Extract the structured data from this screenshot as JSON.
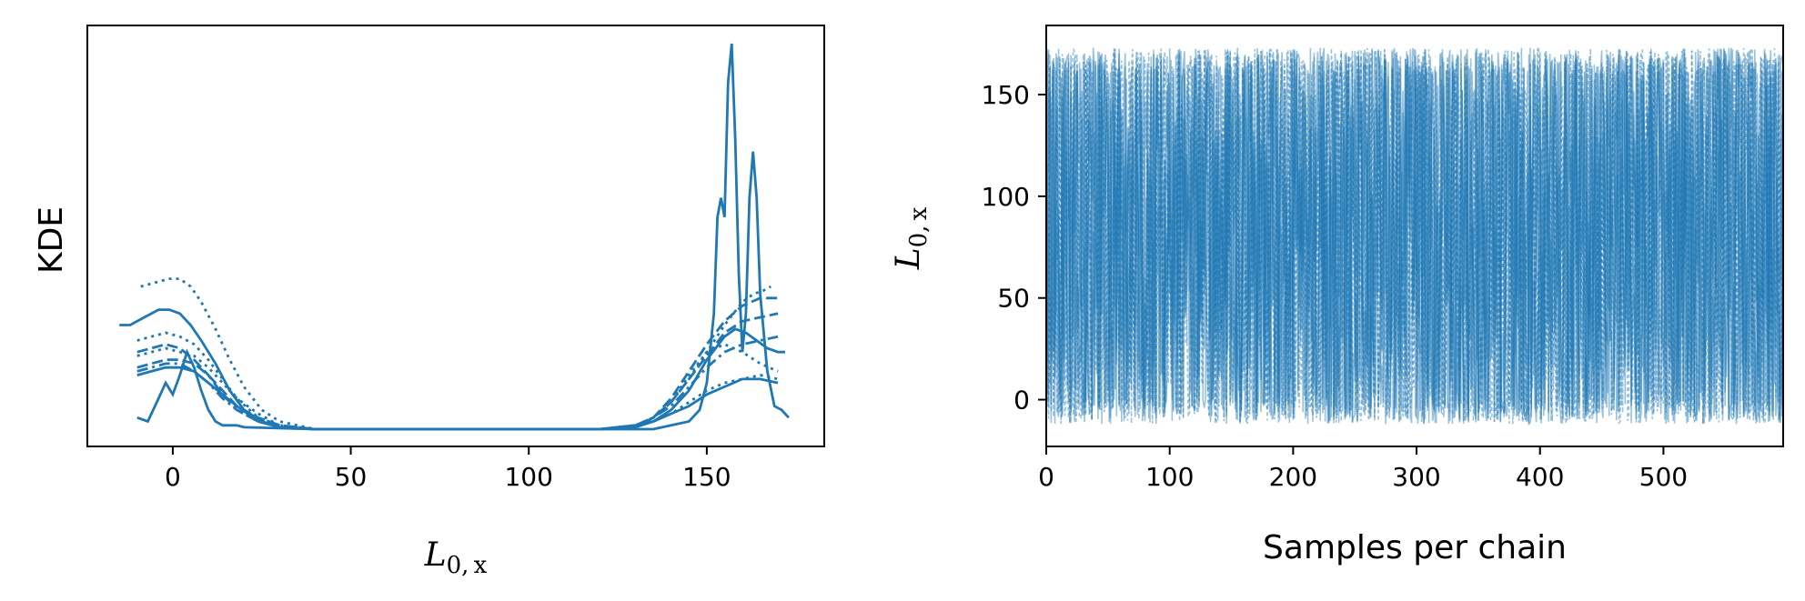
{
  "chart_data": [
    {
      "type": "line",
      "panel": "kde",
      "ylabel": "KDE",
      "xlabel": {
        "main": "L",
        "sub": "0, x"
      },
      "xlim": [
        -24,
        183
      ],
      "ylim": [
        0,
        1
      ],
      "xticks": [
        0,
        50,
        100,
        150
      ],
      "xtick_labels": [
        "0",
        "50",
        "100",
        "150"
      ],
      "yticks_shown": false,
      "color": "#1f77b4",
      "series": [
        {
          "style": "solid",
          "points": [
            [
              -10,
              0.03
            ],
            [
              -7,
              0.02
            ],
            [
              -4,
              0.08
            ],
            [
              -2,
              0.12
            ],
            [
              0,
              0.09
            ],
            [
              2,
              0.14
            ],
            [
              4,
              0.2
            ],
            [
              6,
              0.16
            ],
            [
              8,
              0.1
            ],
            [
              10,
              0.05
            ],
            [
              12,
              0.02
            ],
            [
              14,
              0.01
            ],
            [
              18,
              0.01
            ],
            [
              20,
              0.005
            ],
            [
              40,
              0.0
            ],
            [
              120,
              0.0
            ],
            [
              135,
              0.0
            ],
            [
              140,
              0.01
            ],
            [
              145,
              0.02
            ],
            [
              148,
              0.05
            ],
            [
              150,
              0.12
            ],
            [
              152,
              0.3
            ],
            [
              153,
              0.55
            ],
            [
              154,
              0.6
            ],
            [
              155,
              0.55
            ],
            [
              156,
              0.9
            ],
            [
              157,
              1.0
            ],
            [
              158,
              0.75
            ],
            [
              159,
              0.4
            ],
            [
              160,
              0.2
            ],
            [
              161,
              0.3
            ],
            [
              162,
              0.6
            ],
            [
              163,
              0.72
            ],
            [
              164,
              0.6
            ],
            [
              165,
              0.35
            ],
            [
              167,
              0.15
            ],
            [
              169,
              0.06
            ],
            [
              171,
              0.05
            ],
            [
              173,
              0.03
            ]
          ]
        },
        {
          "style": "solid",
          "points": [
            [
              -15,
              0.27
            ],
            [
              -12,
              0.27
            ],
            [
              -8,
              0.29
            ],
            [
              -4,
              0.31
            ],
            [
              -1,
              0.31
            ],
            [
              2,
              0.3
            ],
            [
              5,
              0.27
            ],
            [
              8,
              0.23
            ],
            [
              12,
              0.17
            ],
            [
              16,
              0.1
            ],
            [
              20,
              0.05
            ],
            [
              25,
              0.02
            ],
            [
              30,
              0.005
            ],
            [
              40,
              0.0
            ],
            [
              120,
              0.0
            ],
            [
              130,
              0.005
            ],
            [
              135,
              0.02
            ],
            [
              140,
              0.05
            ],
            [
              145,
              0.1
            ],
            [
              150,
              0.18
            ],
            [
              155,
              0.24
            ],
            [
              158,
              0.26
            ],
            [
              161,
              0.25
            ],
            [
              164,
              0.23
            ],
            [
              167,
              0.21
            ],
            [
              170,
              0.2
            ],
            [
              172,
              0.2
            ]
          ]
        },
        {
          "style": "dotted",
          "points": [
            [
              -9,
              0.37
            ],
            [
              -5,
              0.38
            ],
            [
              -1,
              0.39
            ],
            [
              2,
              0.39
            ],
            [
              5,
              0.37
            ],
            [
              8,
              0.33
            ],
            [
              12,
              0.26
            ],
            [
              16,
              0.18
            ],
            [
              20,
              0.11
            ],
            [
              25,
              0.05
            ],
            [
              30,
              0.02
            ],
            [
              40,
              0.0
            ],
            [
              120,
              0.0
            ],
            [
              130,
              0.01
            ],
            [
              135,
              0.03
            ],
            [
              140,
              0.07
            ],
            [
              145,
              0.13
            ],
            [
              150,
              0.2
            ],
            [
              155,
              0.27
            ],
            [
              160,
              0.33
            ],
            [
              163,
              0.35
            ],
            [
              166,
              0.36
            ],
            [
              168,
              0.37
            ]
          ]
        },
        {
          "style": "dashed",
          "points": [
            [
              -10,
              0.2
            ],
            [
              -6,
              0.21
            ],
            [
              -2,
              0.22
            ],
            [
              2,
              0.21
            ],
            [
              6,
              0.18
            ],
            [
              10,
              0.14
            ],
            [
              14,
              0.09
            ],
            [
              18,
              0.05
            ],
            [
              24,
              0.02
            ],
            [
              30,
              0.005
            ],
            [
              40,
              0.0
            ],
            [
              120,
              0.0
            ],
            [
              130,
              0.005
            ],
            [
              135,
              0.03
            ],
            [
              140,
              0.07
            ],
            [
              145,
              0.13
            ],
            [
              150,
              0.19
            ],
            [
              155,
              0.25
            ],
            [
              160,
              0.28
            ],
            [
              165,
              0.29
            ],
            [
              170,
              0.3
            ]
          ]
        },
        {
          "style": "dashdot",
          "points": [
            [
              -10,
              0.15
            ],
            [
              -6,
              0.16
            ],
            [
              -2,
              0.17
            ],
            [
              2,
              0.17
            ],
            [
              6,
              0.15
            ],
            [
              10,
              0.12
            ],
            [
              14,
              0.08
            ],
            [
              18,
              0.05
            ],
            [
              24,
              0.02
            ],
            [
              30,
              0.005
            ],
            [
              40,
              0.0
            ],
            [
              120,
              0.0
            ],
            [
              130,
              0.01
            ],
            [
              135,
              0.03
            ],
            [
              140,
              0.06
            ],
            [
              145,
              0.11
            ],
            [
              150,
              0.16
            ],
            [
              155,
              0.2
            ],
            [
              160,
              0.22
            ],
            [
              165,
              0.23
            ],
            [
              170,
              0.24
            ]
          ]
        },
        {
          "style": "dotted",
          "points": [
            [
              -10,
              0.19
            ],
            [
              -6,
              0.2
            ],
            [
              -2,
              0.21
            ],
            [
              2,
              0.2
            ],
            [
              6,
              0.19
            ],
            [
              10,
              0.16
            ],
            [
              14,
              0.12
            ],
            [
              18,
              0.08
            ],
            [
              24,
              0.04
            ],
            [
              30,
              0.01
            ],
            [
              40,
              0.0
            ],
            [
              120,
              0.0
            ],
            [
              130,
              0.01
            ],
            [
              135,
              0.02
            ],
            [
              140,
              0.04
            ],
            [
              145,
              0.07
            ],
            [
              150,
              0.1
            ],
            [
              155,
              0.12
            ],
            [
              160,
              0.13
            ],
            [
              165,
              0.14
            ],
            [
              170,
              0.13
            ]
          ]
        },
        {
          "style": "solid",
          "points": [
            [
              -10,
              0.14
            ],
            [
              -6,
              0.15
            ],
            [
              -2,
              0.16
            ],
            [
              2,
              0.16
            ],
            [
              6,
              0.15
            ],
            [
              10,
              0.12
            ],
            [
              14,
              0.09
            ],
            [
              18,
              0.06
            ],
            [
              24,
              0.02
            ],
            [
              30,
              0.005
            ],
            [
              40,
              0.0
            ],
            [
              120,
              0.0
            ],
            [
              130,
              0.01
            ],
            [
              135,
              0.02
            ],
            [
              140,
              0.04
            ],
            [
              145,
              0.06
            ],
            [
              150,
              0.09
            ],
            [
              155,
              0.11
            ],
            [
              160,
              0.13
            ],
            [
              165,
              0.13
            ],
            [
              170,
              0.12
            ]
          ]
        },
        {
          "style": "dashed",
          "points": [
            [
              -10,
              0.16
            ],
            [
              -6,
              0.17
            ],
            [
              -2,
              0.18
            ],
            [
              2,
              0.18
            ],
            [
              6,
              0.17
            ],
            [
              10,
              0.14
            ],
            [
              14,
              0.1
            ],
            [
              18,
              0.06
            ],
            [
              24,
              0.03
            ],
            [
              30,
              0.01
            ],
            [
              40,
              0.0
            ],
            [
              120,
              0.0
            ],
            [
              130,
              0.005
            ],
            [
              135,
              0.03
            ],
            [
              140,
              0.08
            ],
            [
              145,
              0.15
            ],
            [
              150,
              0.22
            ],
            [
              155,
              0.28
            ],
            [
              160,
              0.32
            ],
            [
              165,
              0.34
            ],
            [
              170,
              0.34
            ]
          ]
        },
        {
          "style": "dotted",
          "points": [
            [
              -10,
              0.23
            ],
            [
              -6,
              0.24
            ],
            [
              -2,
              0.25
            ],
            [
              2,
              0.24
            ],
            [
              6,
              0.22
            ],
            [
              10,
              0.18
            ],
            [
              14,
              0.13
            ],
            [
              18,
              0.08
            ],
            [
              24,
              0.03
            ],
            [
              30,
              0.01
            ],
            [
              40,
              0.0
            ],
            [
              120,
              0.0
            ],
            [
              130,
              0.01
            ],
            [
              135,
              0.03
            ],
            [
              140,
              0.07
            ],
            [
              145,
              0.14
            ],
            [
              150,
              0.2
            ],
            [
              155,
              0.22
            ],
            [
              160,
              0.2
            ],
            [
              165,
              0.17
            ],
            [
              170,
              0.15
            ]
          ]
        }
      ]
    },
    {
      "type": "line",
      "panel": "trace",
      "xlabel": "Samples per chain",
      "ylabel": {
        "main": "L",
        "sub": "0, x"
      },
      "xlim": [
        0,
        597
      ],
      "ylim": [
        -23,
        184
      ],
      "xticks": [
        0,
        100,
        200,
        300,
        400,
        500
      ],
      "xtick_labels": [
        "0",
        "100",
        "200",
        "300",
        "400",
        "500"
      ],
      "yticks": [
        0,
        50,
        100,
        150
      ],
      "ytick_labels": [
        "0",
        "50",
        "100",
        "150"
      ],
      "color": "#1f77b4",
      "n_samples": 597,
      "value_range_approx": [
        -12,
        173
      ]
    }
  ]
}
